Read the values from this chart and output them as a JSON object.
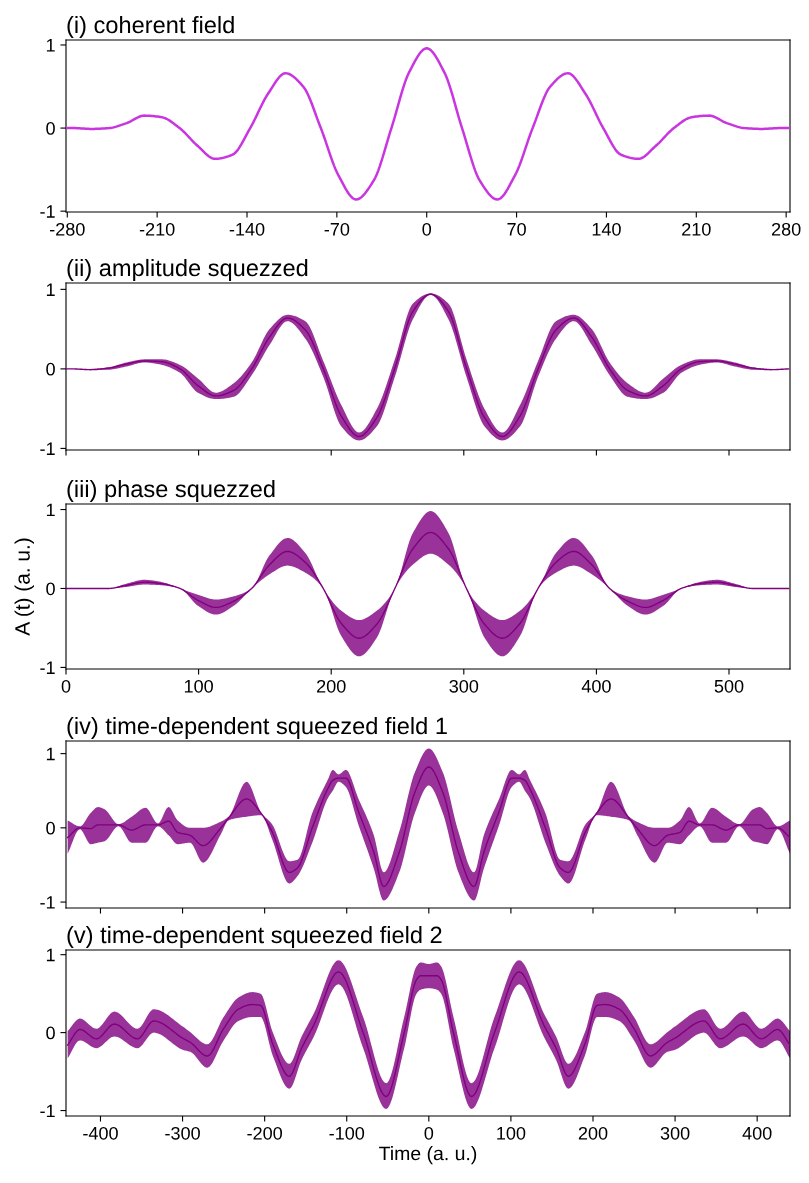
{
  "chart_data": [
    {
      "type": "line",
      "title": "(i) coherent field",
      "x": [
        -281,
        -275,
        -261.25,
        -247.5,
        -233.75,
        -220,
        -206.25,
        -192.5,
        -178.75,
        -165,
        -151.25,
        -137.5,
        -123.75,
        -110,
        -96.25,
        -82.5,
        -68.75,
        -55,
        -41.25,
        -27.5,
        -13.75,
        0,
        13.75,
        27.5,
        41.25,
        55,
        68.75,
        82.5,
        96.25,
        110,
        123.75,
        137.5,
        151.25,
        165,
        178.75,
        192.5,
        206.25,
        220,
        233.75,
        247.5,
        261.25,
        275,
        283
      ],
      "series": [
        {
          "color": "#c936e0",
          "values": [
            0,
            0,
            -0.01,
            0,
            0.06,
            0.15,
            0.13,
            0,
            -0.21,
            -0.37,
            -0.32,
            0,
            0.41,
            0.66,
            0.5,
            0,
            -0.57,
            -0.86,
            -0.63,
            0,
            0.67,
            0.96,
            0.67,
            0,
            -0.63,
            -0.86,
            -0.57,
            0,
            0.5,
            0.66,
            0.41,
            0,
            -0.32,
            -0.37,
            -0.21,
            0,
            0.13,
            0.15,
            0.06,
            0,
            -0.01,
            0,
            0
          ]
        }
      ],
      "xlim": [
        -281,
        283
      ],
      "ylim": [
        -1.01,
        1.06
      ],
      "xticks": [
        -280,
        -210,
        -140,
        -70,
        0,
        70,
        140,
        210,
        280
      ],
      "yticks": [
        -1,
        0,
        1
      ]
    },
    {
      "type": "line",
      "title": "(ii) amplitude squezzed",
      "tick_labels": "y",
      "x": [
        0,
        5,
        18.5,
        32,
        45.5,
        59,
        72.5,
        86,
        99.5,
        113,
        126.5,
        140,
        153.5,
        167,
        180.5,
        194,
        207.5,
        221,
        234.5,
        248,
        261.5,
        275,
        288.5,
        302,
        315.5,
        329,
        342.5,
        356,
        369.5,
        383,
        396.5,
        410,
        423.5,
        437,
        450.5,
        464,
        477.5,
        491,
        504.5,
        518,
        531.5,
        545
      ],
      "series": [
        {
          "color": "#800080",
          "values": [
            0,
            0,
            -0.01,
            0.01,
            0.06,
            0.1,
            0.09,
            0,
            -0.21,
            -0.34,
            -0.27,
            0,
            0.4,
            0.64,
            0.49,
            0,
            -0.59,
            -0.85,
            -0.61,
            0.01,
            0.72,
            0.94,
            0.72,
            0.01,
            -0.61,
            -0.85,
            -0.59,
            0,
            0.49,
            0.64,
            0.4,
            0,
            -0.27,
            -0.34,
            -0.21,
            0,
            0.09,
            0.1,
            0.06,
            0.01,
            -0.01,
            0
          ],
          "lower": [
            0,
            0,
            -0.01,
            -0.01,
            0.03,
            0.08,
            0.05,
            -0.05,
            -0.3,
            -0.38,
            -0.35,
            -0.08,
            0.3,
            0.6,
            0.38,
            -0.1,
            -0.72,
            -0.9,
            -0.72,
            -0.1,
            0.62,
            0.93,
            0.62,
            -0.1,
            -0.72,
            -0.9,
            -0.72,
            -0.1,
            0.38,
            0.6,
            0.3,
            -0.08,
            -0.35,
            -0.38,
            -0.3,
            -0.05,
            0.05,
            0.08,
            0.03,
            -0.01,
            -0.01,
            0
          ],
          "upper": [
            0,
            0,
            0,
            0.02,
            0.08,
            0.12,
            0.12,
            0.05,
            -0.12,
            -0.3,
            -0.18,
            0.08,
            0.5,
            0.68,
            0.6,
            0.1,
            -0.45,
            -0.8,
            -0.5,
            0.12,
            0.82,
            0.95,
            0.82,
            0.12,
            -0.5,
            -0.8,
            -0.45,
            0.1,
            0.6,
            0.68,
            0.5,
            0.08,
            -0.18,
            -0.3,
            -0.12,
            0.05,
            0.12,
            0.12,
            0.08,
            0.02,
            0,
            0
          ]
        }
      ],
      "xlim": [
        0,
        546
      ],
      "ylim": [
        -1.02,
        1.08
      ],
      "xticks": [
        0,
        100,
        200,
        300,
        400,
        500
      ],
      "yticks": [
        -1,
        0,
        1
      ]
    },
    {
      "type": "line",
      "title": "(iii) phase squezzed",
      "ylabel": "A (t) (a. u.)",
      "x": [
        0,
        5,
        18.5,
        32,
        45.5,
        59,
        72.5,
        86,
        99.5,
        113,
        126.5,
        140,
        153.5,
        167,
        180.5,
        194,
        207.5,
        221,
        234.5,
        248,
        261.5,
        275,
        288.5,
        302,
        315.5,
        329,
        342.5,
        356,
        369.5,
        383,
        396.5,
        410,
        423.5,
        437,
        450.5,
        464,
        477.5,
        491,
        504.5,
        518,
        531.5,
        545
      ],
      "series": [
        {
          "color": "#800080",
          "values": [
            0,
            0,
            0,
            0,
            0.04,
            0.08,
            0.06,
            0,
            -0.15,
            -0.24,
            -0.16,
            0,
            0.3,
            0.47,
            0.33,
            0,
            -0.44,
            -0.63,
            -0.45,
            0,
            0.5,
            0.71,
            0.5,
            0,
            -0.45,
            -0.63,
            -0.44,
            0,
            0.33,
            0.47,
            0.3,
            0,
            -0.16,
            -0.24,
            -0.15,
            0,
            0.06,
            0.08,
            0.04,
            0,
            0,
            0
          ],
          "lower": [
            0,
            0,
            0,
            0,
            0.02,
            0.05,
            0.04,
            0,
            -0.22,
            -0.33,
            -0.22,
            0,
            0.18,
            0.29,
            0.2,
            0,
            -0.6,
            -0.86,
            -0.62,
            0,
            0.3,
            0.44,
            0.3,
            0,
            -0.62,
            -0.86,
            -0.6,
            0,
            0.2,
            0.29,
            0.18,
            0,
            -0.22,
            -0.33,
            -0.22,
            0,
            0.04,
            0.05,
            0.02,
            0,
            0,
            0
          ],
          "upper": [
            0,
            0,
            0,
            0,
            0.06,
            0.11,
            0.08,
            0,
            -0.08,
            -0.14,
            -0.1,
            0,
            0.42,
            0.64,
            0.45,
            0,
            -0.28,
            -0.4,
            -0.28,
            0,
            0.7,
            0.98,
            0.7,
            0,
            -0.28,
            -0.4,
            -0.28,
            0,
            0.45,
            0.64,
            0.42,
            0,
            -0.1,
            -0.14,
            -0.08,
            0,
            0.08,
            0.11,
            0.06,
            0,
            0,
            0
          ]
        }
      ],
      "xlim": [
        0,
        546
      ],
      "ylim": [
        -1.02,
        1.07
      ],
      "xticks": [
        0,
        100,
        200,
        300,
        400,
        500
      ],
      "yticks": [
        -1,
        0,
        1
      ]
    },
    {
      "type": "line",
      "title": "(iv) time-dependent squeezed field 1",
      "tick_labels": "y",
      "x": [
        -440,
        -425,
        -412,
        -403,
        -395,
        -378,
        -362,
        -345,
        -330,
        -317,
        -306,
        -291,
        -275,
        -254,
        -244,
        -222,
        -204,
        -191,
        -170,
        -160,
        -142,
        -123,
        -117,
        -110,
        -101,
        -86,
        -67,
        -55,
        -36,
        -17,
        0,
        17,
        36,
        55,
        67,
        86,
        101,
        110,
        117,
        123,
        142,
        160,
        170,
        191,
        204,
        222,
        244,
        254,
        275,
        291,
        306,
        317,
        330,
        345,
        362,
        378,
        395,
        403,
        412,
        425,
        440
      ],
      "series": [
        {
          "color": "#800080",
          "values": [
            -0.13,
            0,
            -0.01,
            0.04,
            0.04,
            0.04,
            -0.03,
            0.04,
            0.04,
            0.09,
            -0.06,
            -0.1,
            -0.24,
            -0.01,
            0.13,
            0.39,
            0.19,
            -0.05,
            -0.6,
            -0.54,
            0,
            0.53,
            0.64,
            0.67,
            0.67,
            0.23,
            -0.33,
            -0.79,
            -0.33,
            0.48,
            0.82,
            0.48,
            -0.33,
            -0.79,
            -0.33,
            0.23,
            0.67,
            0.67,
            0.64,
            0.53,
            0,
            -0.54,
            -0.6,
            -0.05,
            0.19,
            0.39,
            0.13,
            -0.01,
            -0.24,
            -0.1,
            -0.06,
            0.09,
            0.04,
            0.04,
            -0.03,
            0.04,
            0.04,
            0.04,
            -0.01,
            0,
            -0.13
          ],
          "lower": [
            -0.35,
            -0.02,
            -0.22,
            -0.2,
            -0.18,
            0.02,
            -0.2,
            -0.2,
            0.02,
            -0.1,
            -0.22,
            -0.2,
            -0.47,
            -0.1,
            0.1,
            0.15,
            0.17,
            -0.15,
            -0.75,
            -0.65,
            -0.2,
            0.4,
            0.5,
            0.62,
            0.55,
            0.05,
            -0.55,
            -0.98,
            -0.6,
            0.2,
            0.57,
            0.2,
            -0.6,
            -0.98,
            -0.55,
            0.05,
            0.55,
            0.62,
            0.5,
            0.4,
            -0.2,
            -0.65,
            -0.75,
            -0.15,
            0.17,
            0.15,
            0.1,
            -0.1,
            -0.47,
            -0.2,
            -0.22,
            -0.1,
            0.02,
            -0.2,
            -0.2,
            0.02,
            -0.18,
            -0.2,
            -0.22,
            -0.02,
            -0.35
          ],
          "upper": [
            0.1,
            0.02,
            0.2,
            0.28,
            0.25,
            0.05,
            0.15,
            0.27,
            0.06,
            0.28,
            0.1,
            0,
            0,
            0.08,
            0.15,
            0.62,
            0.2,
            0.05,
            -0.45,
            -0.43,
            0.2,
            0.65,
            0.78,
            0.72,
            0.78,
            0.4,
            -0.1,
            -0.6,
            -0.05,
            0.75,
            1.07,
            0.75,
            -0.05,
            -0.6,
            -0.1,
            0.4,
            0.78,
            0.72,
            0.78,
            0.65,
            0.2,
            -0.43,
            -0.45,
            0.05,
            0.2,
            0.62,
            0.15,
            0.08,
            0,
            0,
            0.1,
            0.28,
            0.06,
            0.27,
            0.15,
            0.05,
            0.25,
            0.28,
            0.2,
            0.02,
            0.1
          ]
        }
      ],
      "xlim": [
        -442,
        440
      ],
      "ylim": [
        -1.08,
        1.17
      ],
      "xticks": [
        -400,
        -300,
        -200,
        -100,
        0,
        100,
        200,
        300,
        400
      ],
      "yticks": [
        -1,
        0,
        1
      ]
    },
    {
      "type": "line",
      "title": "(v) time-dependent squeezed field 2",
      "xlabel": "Time (a. u.)",
      "x": [
        -440,
        -425,
        -405,
        -383,
        -355,
        -335,
        -300,
        -290,
        -270,
        -250,
        -232,
        -215,
        -205,
        -190,
        -170,
        -155,
        -140,
        -110,
        -80,
        -52,
        -30,
        -15,
        -10,
        0,
        10,
        15,
        30,
        52,
        80,
        110,
        140,
        155,
        170,
        190,
        205,
        215,
        232,
        250,
        270,
        290,
        300,
        335,
        355,
        383,
        405,
        425,
        440
      ],
      "series": [
        {
          "color": "#800080",
          "values": [
            -0.16,
            0.04,
            -0.08,
            0.11,
            -0.08,
            0.15,
            -0.07,
            -0.13,
            -0.3,
            0.05,
            0.3,
            0.36,
            0.35,
            -0.15,
            -0.56,
            -0.2,
            0.1,
            0.78,
            0,
            -0.82,
            0,
            0.68,
            0.73,
            0.73,
            0.73,
            0.68,
            0,
            -0.82,
            0,
            0.78,
            0.1,
            -0.2,
            -0.56,
            -0.15,
            0.35,
            0.36,
            0.3,
            0.05,
            -0.3,
            -0.13,
            -0.07,
            0.15,
            -0.08,
            0.11,
            -0.08,
            0.04,
            -0.16
          ],
          "lower": [
            -0.33,
            -0.1,
            -0.2,
            -0.05,
            -0.2,
            0,
            -0.22,
            -0.25,
            -0.45,
            -0.1,
            0.15,
            0.2,
            0.2,
            -0.3,
            -0.72,
            -0.35,
            -0.05,
            0.62,
            -0.2,
            -0.98,
            -0.2,
            0.5,
            0.55,
            0.57,
            0.55,
            0.5,
            -0.2,
            -0.98,
            -0.2,
            0.62,
            -0.05,
            -0.35,
            -0.72,
            -0.3,
            0.2,
            0.2,
            0.15,
            -0.1,
            -0.45,
            -0.25,
            -0.22,
            0,
            -0.2,
            -0.05,
            -0.2,
            -0.1,
            -0.33
          ],
          "upper": [
            0.02,
            0.18,
            0.05,
            0.27,
            0.05,
            0.3,
            0.08,
            0,
            -0.15,
            0.2,
            0.45,
            0.52,
            0.5,
            0,
            -0.4,
            -0.05,
            0.25,
            0.93,
            0.2,
            -0.65,
            0.2,
            0.85,
            0.9,
            0.88,
            0.9,
            0.85,
            0.2,
            -0.65,
            0.2,
            0.93,
            0.25,
            -0.05,
            -0.4,
            0,
            0.5,
            0.52,
            0.45,
            0.2,
            -0.15,
            0,
            0.08,
            0.3,
            0.05,
            0.27,
            0.05,
            0.18,
            0.02
          ]
        }
      ],
      "xlim": [
        -442,
        440
      ],
      "ylim": [
        -1.07,
        1.06
      ],
      "xticks": [
        -400,
        -300,
        -200,
        -100,
        0,
        100,
        200,
        300,
        400
      ],
      "yticks": [
        -1,
        0,
        1
      ]
    }
  ]
}
